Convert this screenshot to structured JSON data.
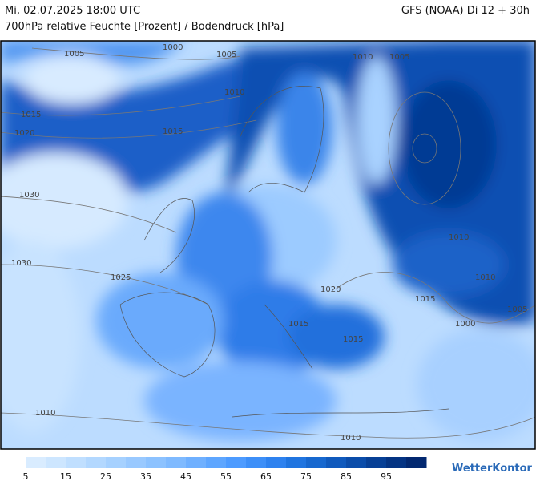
{
  "header": {
    "datetime": "Mi, 02.07.2025 18:00 UTC",
    "model": "GFS (NOAA) Di 12 + 30h",
    "subtitle": "700hPa relative Feuchte [Prozent] / Bodendruck [hPa]"
  },
  "isobar_labels": [
    "1005",
    "1000",
    "1005",
    "1010",
    "1005",
    "1010",
    "1015",
    "1020",
    "1015",
    "1030",
    "1030",
    "1025",
    "1010",
    "1010",
    "1020",
    "1015",
    "1005",
    "1000",
    "1015",
    "1015",
    "1010",
    "1010"
  ],
  "colorbar": {
    "ticks": [
      5,
      15,
      25,
      35,
      45,
      55,
      65,
      75,
      85,
      95
    ],
    "colors": [
      "#d9ecff",
      "#cde6ff",
      "#c0dfff",
      "#b3d8ff",
      "#a6d1ff",
      "#99c9ff",
      "#8cc2ff",
      "#7fbaff",
      "#6fb0ff",
      "#5ea6ff",
      "#4d9bff",
      "#3d8ff8",
      "#2e82ef",
      "#2075e0",
      "#1768cf",
      "#105abd",
      "#0b4daa",
      "#074096",
      "#043483",
      "#022870"
    ]
  },
  "logo": "WetterKontor"
}
